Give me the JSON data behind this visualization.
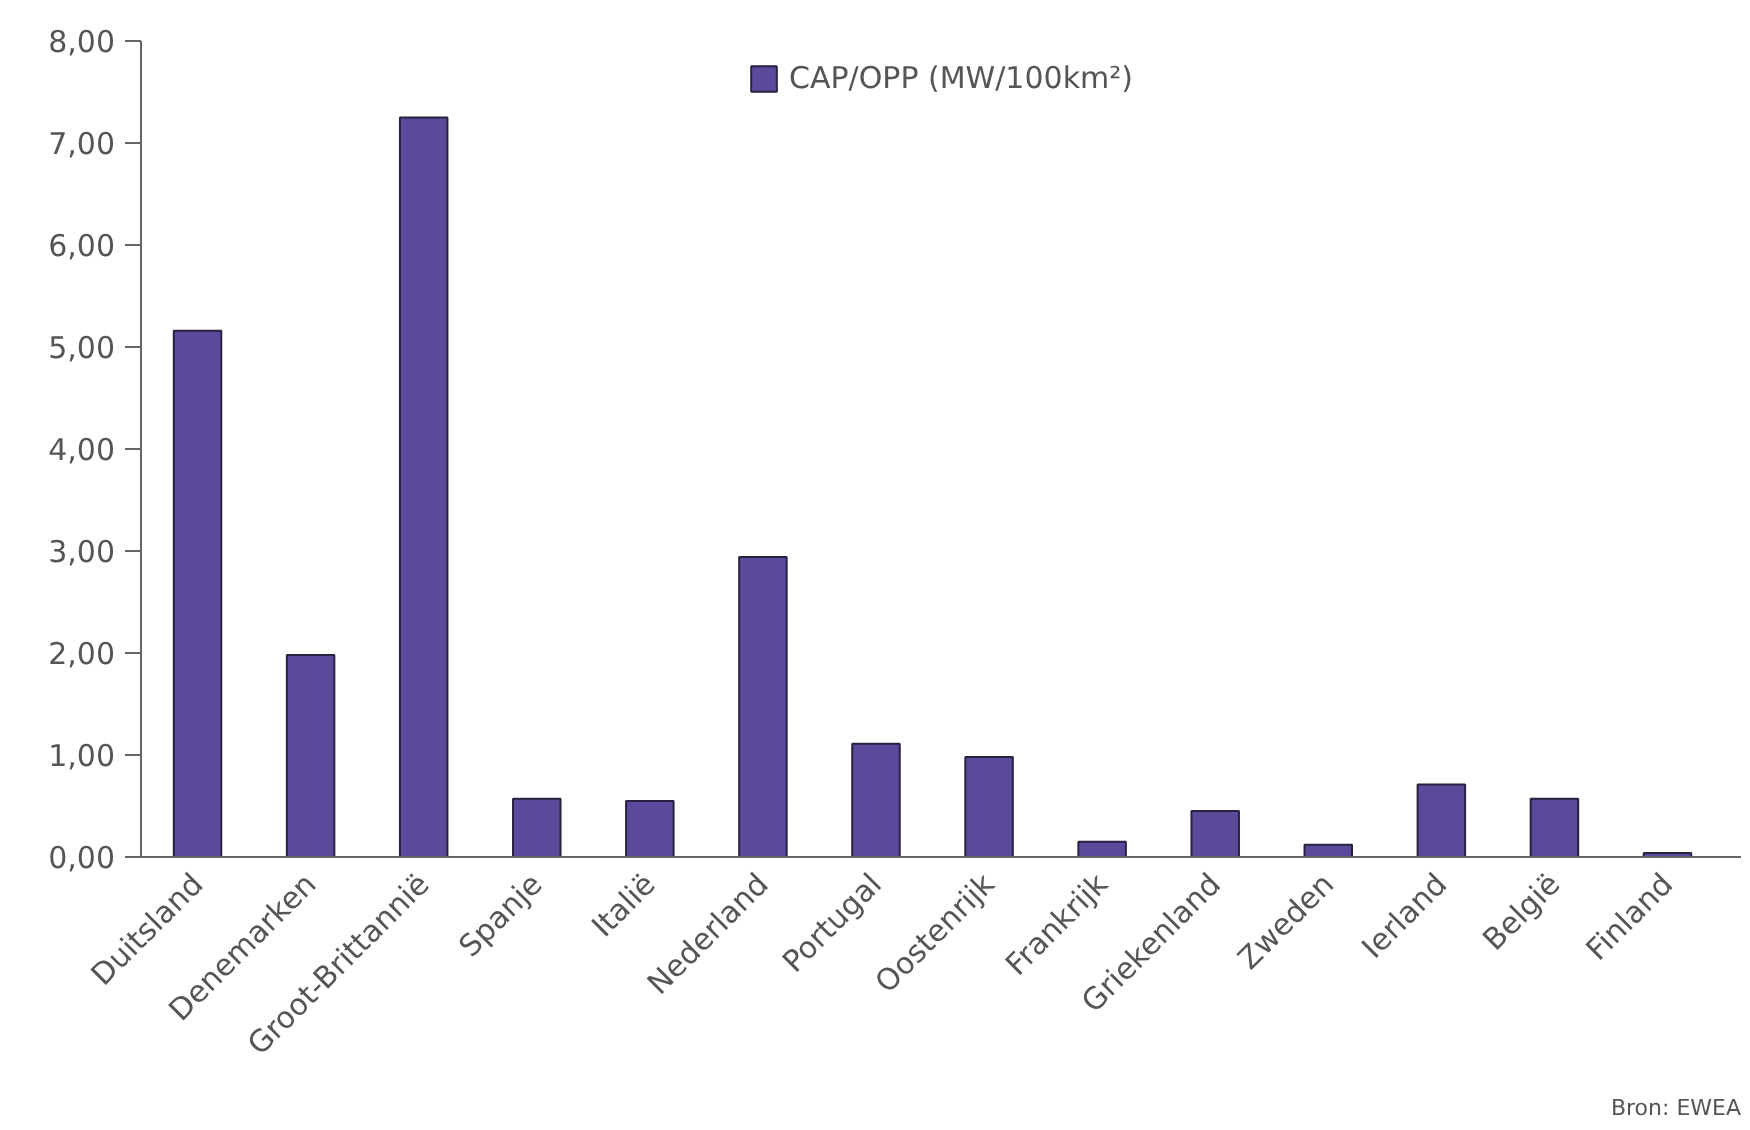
{
  "chart_data": {
    "type": "bar",
    "categories": [
      "Duitsland",
      "Denemarken",
      "Groot-Brittannië",
      "Spanje",
      "Italië",
      "Nederland",
      "Portugal",
      "Oostenrijk",
      "Frankrijk",
      "Griekenland",
      "Zweden",
      "Ierland",
      "België",
      "Finland"
    ],
    "series": [
      {
        "name": "CAP/OPP (MW/100km²)",
        "color": "#5b4a9b",
        "values": [
          5.16,
          1.98,
          7.25,
          0.57,
          0.55,
          2.94,
          1.11,
          0.98,
          0.15,
          0.45,
          0.12,
          0.71,
          0.57,
          0.04
        ]
      }
    ],
    "ylim": [
      0,
      8
    ],
    "yticks": [
      {
        "value": 0,
        "label": "0,00"
      },
      {
        "value": 1,
        "label": "1,00"
      },
      {
        "value": 2,
        "label": "2,00"
      },
      {
        "value": 3,
        "label": "3,00"
      },
      {
        "value": 4,
        "label": "4,00"
      },
      {
        "value": 5,
        "label": "5,00"
      },
      {
        "value": 6,
        "label": "6,00"
      },
      {
        "value": 7,
        "label": "7,00"
      },
      {
        "value": 8,
        "label": "8,00"
      }
    ],
    "grid": false,
    "legend": "top",
    "annotations": [
      "Bron: EWEA"
    ]
  }
}
